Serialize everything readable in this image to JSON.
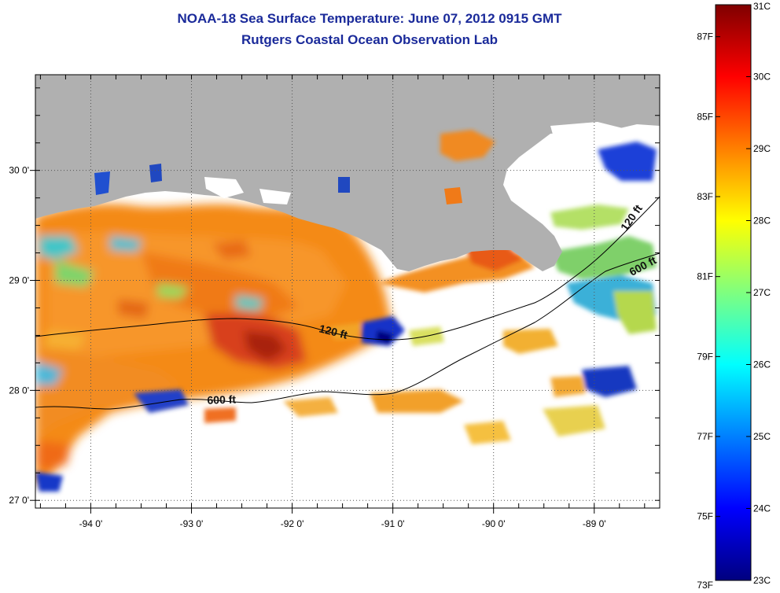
{
  "header": {
    "title": "NOAA-18 Sea Surface Temperature:  June 07, 2012 0915 GMT",
    "subtitle": "Rutgers Coastal Ocean Observation Lab"
  },
  "map": {
    "lon_range": [
      -94.55,
      -88.35
    ],
    "lat_range": [
      26.93,
      30.87
    ],
    "lon_ticks": [
      {
        "value": -94,
        "label": "-94 0'"
      },
      {
        "value": -93,
        "label": "-93 0'"
      },
      {
        "value": -92,
        "label": "-92 0'"
      },
      {
        "value": -91,
        "label": "-91 0'"
      },
      {
        "value": -90,
        "label": "-90 0'"
      },
      {
        "value": -89,
        "label": "-89 0'"
      }
    ],
    "lat_ticks": [
      {
        "value": 30,
        "label": "30 0'"
      },
      {
        "value": 29,
        "label": "29 0'"
      },
      {
        "value": 28,
        "label": "28 0'"
      },
      {
        "value": 27,
        "label": "27 0'"
      }
    ],
    "contours": [
      {
        "label": "120 ft",
        "label_lon": -91.6,
        "label_lat": 28.5
      },
      {
        "label": "600 ft",
        "label_lon": -92.7,
        "label_lat": 27.88
      },
      {
        "label": "120 ft",
        "label_lon": -88.6,
        "label_lat": 29.55
      },
      {
        "label": "600 ft",
        "label_lon": -88.5,
        "label_lat": 29.1
      }
    ],
    "colors": {
      "land": "#b0b0b0",
      "no_data": "#ffffff"
    }
  },
  "colorbar": {
    "celsius_labels": [
      "31C",
      "30C",
      "29C",
      "28C",
      "27C",
      "26C",
      "25C",
      "24C",
      "23C"
    ],
    "fahrenheit_labels": [
      "87F",
      "85F",
      "83F",
      "81F",
      "79F",
      "77F",
      "75F",
      "73F"
    ],
    "range_c": [
      23,
      31
    ]
  }
}
